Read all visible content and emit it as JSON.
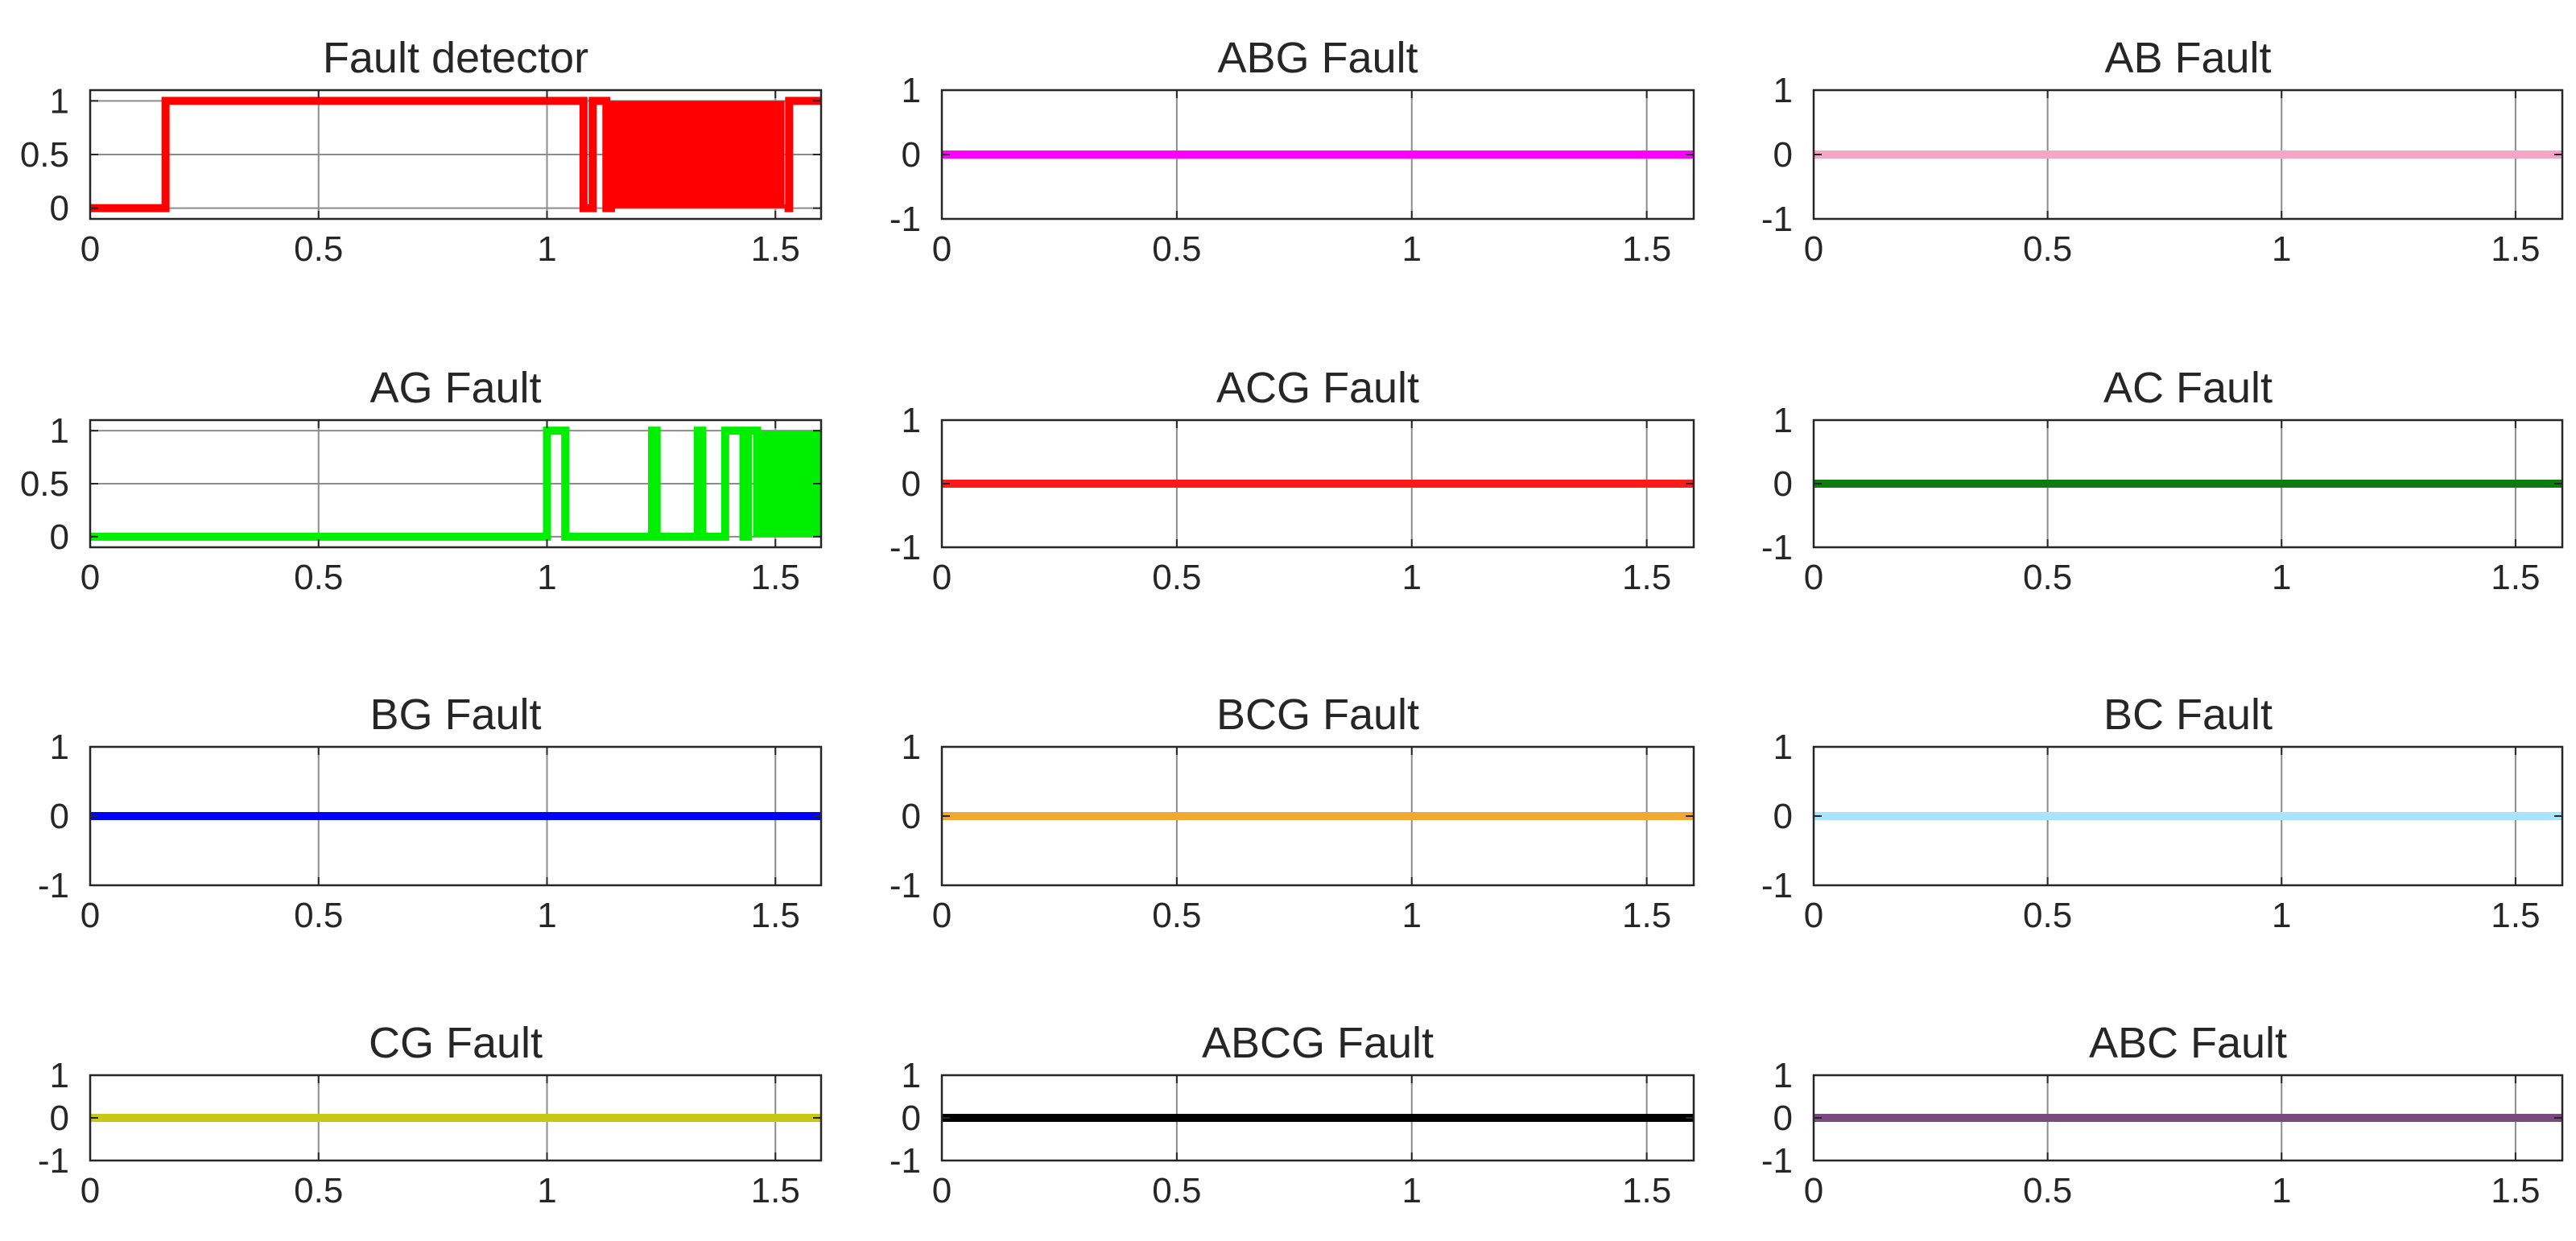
{
  "chart_data": [
    {
      "type": "line",
      "title": "Fault detector",
      "color": "#ff0000",
      "ylim": [
        -0.1,
        1.1
      ],
      "xlim": [
        0,
        1.6
      ],
      "xticks": [
        0,
        0.5,
        1,
        1.5
      ],
      "xtick_labels": [
        "0",
        "0.5",
        "1",
        "1.5"
      ],
      "yticks": [
        0,
        0.5,
        1
      ],
      "ytick_labels": [
        "0",
        "0.5",
        "1"
      ],
      "grid": true,
      "series": [
        {
          "x": [
            0,
            0.165,
            0.165,
            1.08,
            1.08,
            1.1,
            1.1,
            1.13,
            1.13,
            1.14,
            1.14
          ],
          "y": [
            0,
            0,
            1,
            1,
            0,
            0,
            1,
            1,
            0,
            0,
            1
          ],
          "dense_band": [
            1.14,
            1.52
          ],
          "tail_x": [
            1.52,
            1.53,
            1.53,
            1.6
          ],
          "tail_y": [
            0,
            0,
            1,
            1
          ]
        }
      ]
    },
    {
      "type": "line",
      "title": "ABG Fault",
      "color": "#ff00ff",
      "ylim": [
        -1,
        1
      ],
      "xlim": [
        0,
        1.6
      ],
      "xticks": [
        0,
        0.5,
        1,
        1.5
      ],
      "xtick_labels": [
        "0",
        "0.5",
        "1",
        "1.5"
      ],
      "yticks": [
        -1,
        0,
        1
      ],
      "ytick_labels": [
        "-1",
        "0",
        "1"
      ],
      "grid": true,
      "series": [
        {
          "x": [
            0,
            1.6
          ],
          "y": [
            0,
            0
          ]
        }
      ]
    },
    {
      "type": "line",
      "title": "AB Fault",
      "color": "#f4a6c4",
      "ylim": [
        -1,
        1
      ],
      "xlim": [
        0,
        1.6
      ],
      "xticks": [
        0,
        0.5,
        1,
        1.5
      ],
      "xtick_labels": [
        "0",
        "0.5",
        "1",
        "1.5"
      ],
      "yticks": [
        -1,
        0,
        1
      ],
      "ytick_labels": [
        "-1",
        "0",
        "1"
      ],
      "grid": true,
      "series": [
        {
          "x": [
            0,
            1.6
          ],
          "y": [
            0,
            0
          ]
        }
      ]
    },
    {
      "type": "line",
      "title": "AG Fault",
      "color": "#00ee00",
      "ylim": [
        -0.1,
        1.1
      ],
      "xlim": [
        0,
        1.6
      ],
      "xticks": [
        0,
        0.5,
        1,
        1.5
      ],
      "xtick_labels": [
        "0",
        "0.5",
        "1",
        "1.5"
      ],
      "yticks": [
        0,
        0.5,
        1
      ],
      "ytick_labels": [
        "0",
        "0.5",
        "1"
      ],
      "grid": true,
      "series": [
        {
          "x": [
            0,
            1.0,
            1.0,
            1.04,
            1.04,
            1.23,
            1.23,
            1.24,
            1.24,
            1.33,
            1.33,
            1.34,
            1.34,
            1.39,
            1.39,
            1.43,
            1.43,
            1.44,
            1.44,
            1.46,
            1.46
          ],
          "y": [
            0,
            0,
            1,
            1,
            0,
            0,
            1,
            1,
            0,
            0,
            1,
            1,
            0,
            0,
            1,
            1,
            0,
            0,
            1,
            1,
            0
          ],
          "dense_band": [
            1.46,
            1.6
          ]
        }
      ]
    },
    {
      "type": "line",
      "title": "ACG Fault",
      "color": "#ff1a1a",
      "ylim": [
        -1,
        1
      ],
      "xlim": [
        0,
        1.6
      ],
      "xticks": [
        0,
        0.5,
        1,
        1.5
      ],
      "xtick_labels": [
        "0",
        "0.5",
        "1",
        "1.5"
      ],
      "yticks": [
        -1,
        0,
        1
      ],
      "ytick_labels": [
        "-1",
        "0",
        "1"
      ],
      "grid": true,
      "series": [
        {
          "x": [
            0,
            1.6
          ],
          "y": [
            0,
            0
          ]
        }
      ]
    },
    {
      "type": "line",
      "title": "AC Fault",
      "color": "#0f7a10",
      "ylim": [
        -1,
        1
      ],
      "xlim": [
        0,
        1.6
      ],
      "xticks": [
        0,
        0.5,
        1,
        1.5
      ],
      "xtick_labels": [
        "0",
        "0.5",
        "1",
        "1.5"
      ],
      "yticks": [
        -1,
        0,
        1
      ],
      "ytick_labels": [
        "-1",
        "0",
        "1"
      ],
      "grid": true,
      "series": [
        {
          "x": [
            0,
            1.6
          ],
          "y": [
            0,
            0
          ]
        }
      ]
    },
    {
      "type": "line",
      "title": "BG Fault",
      "color": "#0000ff",
      "ylim": [
        -1,
        1
      ],
      "xlim": [
        0,
        1.6
      ],
      "xticks": [
        0,
        0.5,
        1,
        1.5
      ],
      "xtick_labels": [
        "0",
        "0.5",
        "1",
        "1.5"
      ],
      "yticks": [
        -1,
        0,
        1
      ],
      "ytick_labels": [
        "-1",
        "0",
        "1"
      ],
      "grid": true,
      "series": [
        {
          "x": [
            0,
            1.6
          ],
          "y": [
            0,
            0
          ]
        }
      ]
    },
    {
      "type": "line",
      "title": "BCG Fault",
      "color": "#f0a830",
      "ylim": [
        -1,
        1
      ],
      "xlim": [
        0,
        1.6
      ],
      "xticks": [
        0,
        0.5,
        1,
        1.5
      ],
      "xtick_labels": [
        "0",
        "0.5",
        "1",
        "1.5"
      ],
      "yticks": [
        -1,
        0,
        1
      ],
      "ytick_labels": [
        "-1",
        "0",
        "1"
      ],
      "grid": true,
      "series": [
        {
          "x": [
            0,
            1.6
          ],
          "y": [
            0,
            0
          ]
        }
      ]
    },
    {
      "type": "line",
      "title": "BC Fault",
      "color": "#a8e4ff",
      "ylim": [
        -1,
        1
      ],
      "xlim": [
        0,
        1.6
      ],
      "xticks": [
        0,
        0.5,
        1,
        1.5
      ],
      "xtick_labels": [
        "0",
        "0.5",
        "1",
        "1.5"
      ],
      "yticks": [
        -1,
        0,
        1
      ],
      "ytick_labels": [
        "-1",
        "0",
        "1"
      ],
      "grid": true,
      "series": [
        {
          "x": [
            0,
            1.6
          ],
          "y": [
            0,
            0
          ]
        }
      ]
    },
    {
      "type": "line",
      "title": "CG Fault",
      "color": "#c8c814",
      "ylim": [
        -1,
        1
      ],
      "xlim": [
        0,
        1.6
      ],
      "xticks": [
        0,
        0.5,
        1,
        1.5
      ],
      "xtick_labels": [
        "0",
        "0.5",
        "1",
        "1.5"
      ],
      "yticks": [
        -1,
        0,
        1
      ],
      "ytick_labels": [
        "-1",
        "0",
        "1"
      ],
      "grid": true,
      "series": [
        {
          "x": [
            0,
            1.6
          ],
          "y": [
            0,
            0
          ]
        }
      ]
    },
    {
      "type": "line",
      "title": "ABCG Fault",
      "color": "#000000",
      "ylim": [
        -1,
        1
      ],
      "xlim": [
        0,
        1.6
      ],
      "xticks": [
        0,
        0.5,
        1,
        1.5
      ],
      "xtick_labels": [
        "0",
        "0.5",
        "1",
        "1.5"
      ],
      "yticks": [
        -1,
        0,
        1
      ],
      "ytick_labels": [
        "-1",
        "0",
        "1"
      ],
      "grid": true,
      "series": [
        {
          "x": [
            0,
            1.6
          ],
          "y": [
            0,
            0
          ]
        }
      ]
    },
    {
      "type": "line",
      "title": "ABC Fault",
      "color": "#7a4a7e",
      "ylim": [
        -1,
        1
      ],
      "xlim": [
        0,
        1.6
      ],
      "xticks": [
        0,
        0.5,
        1,
        1.5
      ],
      "xtick_labels": [
        "0",
        "0.5",
        "1",
        "1.5"
      ],
      "yticks": [
        -1,
        0,
        1
      ],
      "ytick_labels": [
        "-1",
        "0",
        "1"
      ],
      "grid": true,
      "series": [
        {
          "x": [
            0,
            1.6
          ],
          "y": [
            0,
            0
          ]
        }
      ]
    }
  ]
}
